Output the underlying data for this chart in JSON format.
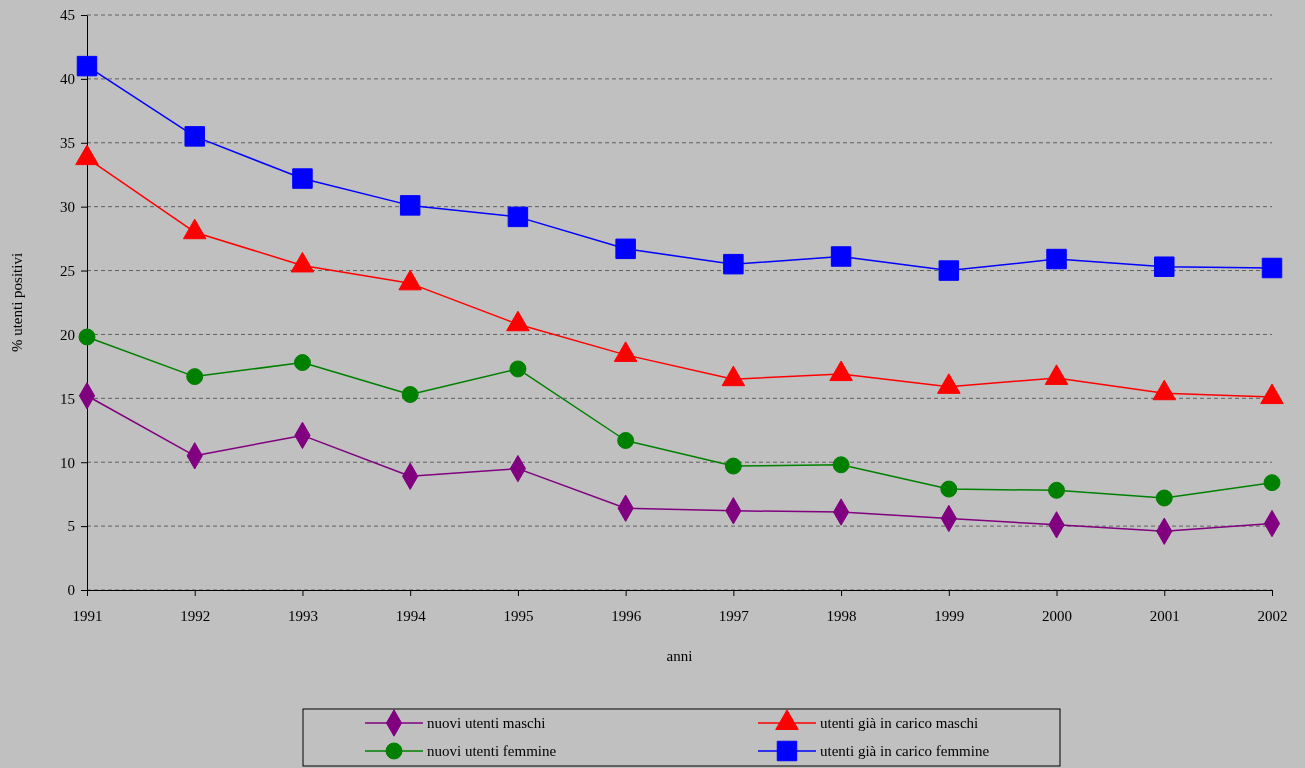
{
  "chart_data": {
    "type": "line",
    "xlabel": "anni",
    "ylabel": "% utenti positivi",
    "x": [
      1991,
      1992,
      1993,
      1994,
      1995,
      1996,
      1997,
      1998,
      1999,
      2000,
      2001,
      2002
    ],
    "xlim": [
      1991,
      2002
    ],
    "xticks": [
      1991,
      1992,
      1993,
      1994,
      1995,
      1996,
      1997,
      1998,
      1999,
      2000,
      2001,
      2002
    ],
    "ylim": [
      0,
      45
    ],
    "yticks": [
      0,
      5,
      10,
      15,
      20,
      25,
      30,
      35,
      40,
      45
    ],
    "grid": "y",
    "legend": "bottom",
    "line_style": "solid",
    "series": [
      {
        "name": "nuovi utenti maschi",
        "color": "#800080",
        "marker": "diamond",
        "values": [
          15.2,
          10.5,
          12.1,
          8.9,
          9.5,
          6.4,
          6.2,
          6.1,
          5.6,
          5.1,
          4.6,
          5.2
        ]
      },
      {
        "name": "utenti già in carico maschi",
        "color": "#ff0000",
        "marker": "triangle",
        "values": [
          33.8,
          28.0,
          25.4,
          24.0,
          20.8,
          18.4,
          16.5,
          16.9,
          15.9,
          16.6,
          15.4,
          15.1
        ]
      },
      {
        "name": "nuovi utenti femmine",
        "color": "#008000",
        "marker": "circle",
        "values": [
          19.8,
          16.7,
          17.8,
          15.3,
          17.3,
          11.7,
          9.7,
          9.8,
          7.9,
          7.8,
          7.2,
          8.4
        ]
      },
      {
        "name": "utenti già in carico femmine",
        "color": "#0000ff",
        "marker": "square",
        "values": [
          41.0,
          35.5,
          32.2,
          30.1,
          29.2,
          26.7,
          25.5,
          26.1,
          25.0,
          25.9,
          25.3,
          25.2
        ]
      }
    ]
  }
}
